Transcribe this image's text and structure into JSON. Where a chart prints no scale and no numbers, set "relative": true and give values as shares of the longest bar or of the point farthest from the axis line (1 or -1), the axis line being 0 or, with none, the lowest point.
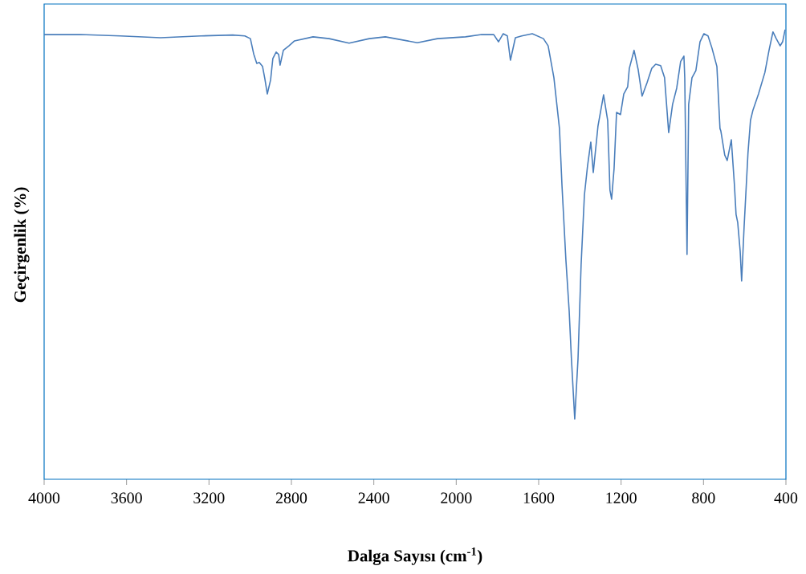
{
  "chart_data": {
    "type": "line",
    "relative": true,
    "xlabel": "Dalga Sayısı (cm$^{-1}$)",
    "ylabel": "Geçirgenlik (%)",
    "xlim": [
      4000,
      400
    ],
    "xticks": [
      4000,
      3600,
      3200,
      2800,
      2400,
      2000,
      1600,
      1200,
      800,
      400
    ],
    "grid": false,
    "line_style": "solid",
    "series": [
      {
        "color": "#4a7ebb",
        "x": [
          4000,
          3825,
          3630,
          3435,
          3240,
          3085,
          3026,
          2999,
          2983,
          2968,
          2956,
          2940,
          2929,
          2917,
          2901,
          2890,
          2874,
          2862,
          2855,
          2839,
          2812,
          2785,
          2695,
          2617,
          2520,
          2422,
          2344,
          2189,
          2091,
          1955,
          1877,
          1818,
          1795,
          1772,
          1752,
          1737,
          1713,
          1682,
          1631,
          1577,
          1554,
          1526,
          1499,
          1487,
          1468,
          1452,
          1441,
          1425,
          1409,
          1394,
          1378,
          1363,
          1347,
          1335,
          1312,
          1285,
          1265,
          1254,
          1246,
          1234,
          1222,
          1203,
          1187,
          1168,
          1160,
          1137,
          1117,
          1098,
          1074,
          1051,
          1032,
          1008,
          989,
          969,
          950,
          930,
          911,
          895,
          891,
          880,
          872,
          856,
          837,
          817,
          798,
          778,
          759,
          735,
          720,
          716,
          697,
          685,
          665,
          650,
          642,
          634,
          622,
          615,
          603,
          584,
          572,
          560,
          533,
          502,
          482,
          463,
          447,
          428,
          416,
          404
        ],
        "values": [
          0.989,
          0.989,
          0.986,
          0.982,
          0.986,
          0.988,
          0.986,
          0.98,
          0.946,
          0.925,
          0.927,
          0.918,
          0.891,
          0.857,
          0.888,
          0.936,
          0.95,
          0.945,
          0.921,
          0.954,
          0.964,
          0.975,
          0.984,
          0.98,
          0.97,
          0.98,
          0.984,
          0.971,
          0.98,
          0.984,
          0.989,
          0.989,
          0.973,
          0.991,
          0.986,
          0.932,
          0.982,
          0.986,
          0.991,
          0.98,
          0.964,
          0.893,
          0.78,
          0.655,
          0.489,
          0.375,
          0.268,
          0.134,
          0.268,
          0.477,
          0.632,
          0.696,
          0.75,
          0.682,
          0.786,
          0.855,
          0.798,
          0.643,
          0.623,
          0.691,
          0.816,
          0.811,
          0.857,
          0.873,
          0.914,
          0.954,
          0.911,
          0.852,
          0.882,
          0.914,
          0.923,
          0.92,
          0.893,
          0.771,
          0.834,
          0.87,
          0.929,
          0.941,
          0.893,
          0.5,
          0.834,
          0.893,
          0.909,
          0.973,
          0.991,
          0.986,
          0.959,
          0.918,
          0.78,
          0.775,
          0.721,
          0.709,
          0.755,
          0.655,
          0.589,
          0.571,
          0.507,
          0.441,
          0.561,
          0.727,
          0.798,
          0.821,
          0.857,
          0.905,
          0.954,
          0.995,
          0.98,
          0.964,
          0.973,
          1.0
        ]
      }
    ]
  }
}
